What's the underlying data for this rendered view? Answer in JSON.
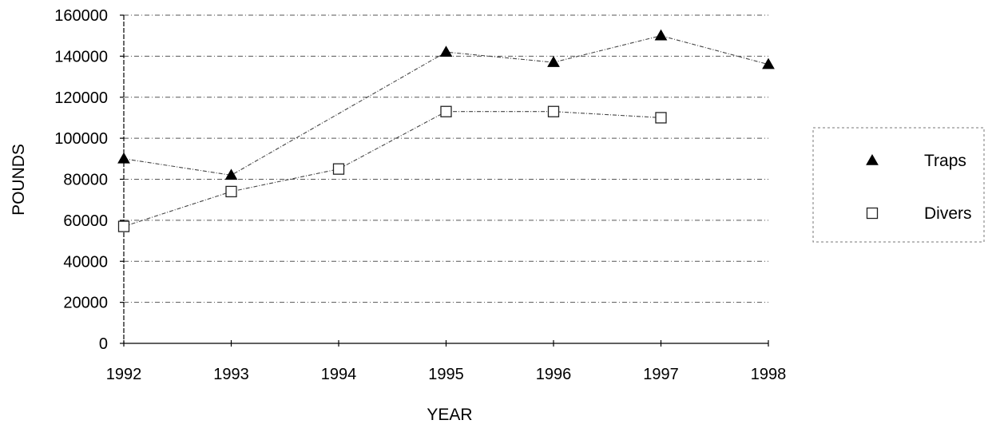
{
  "chart_data": {
    "type": "line",
    "xlabel": "YEAR",
    "ylabel": "POUNDS",
    "x": [
      1992,
      1993,
      1994,
      1995,
      1996,
      1997,
      1998
    ],
    "ylim": [
      0,
      160000
    ],
    "yticks": [
      0,
      20000,
      40000,
      60000,
      80000,
      100000,
      120000,
      140000,
      160000
    ],
    "grid": true,
    "legend": "right",
    "series": [
      {
        "name": "Traps",
        "marker": "filled-triangle",
        "color": "#000000",
        "values": [
          90000,
          82000,
          null,
          142000,
          137000,
          150000,
          136000
        ]
      },
      {
        "name": "Divers",
        "marker": "open-square",
        "color": "#000000",
        "values": [
          57000,
          74000,
          85000,
          113000,
          113000,
          110000,
          null
        ]
      }
    ]
  }
}
